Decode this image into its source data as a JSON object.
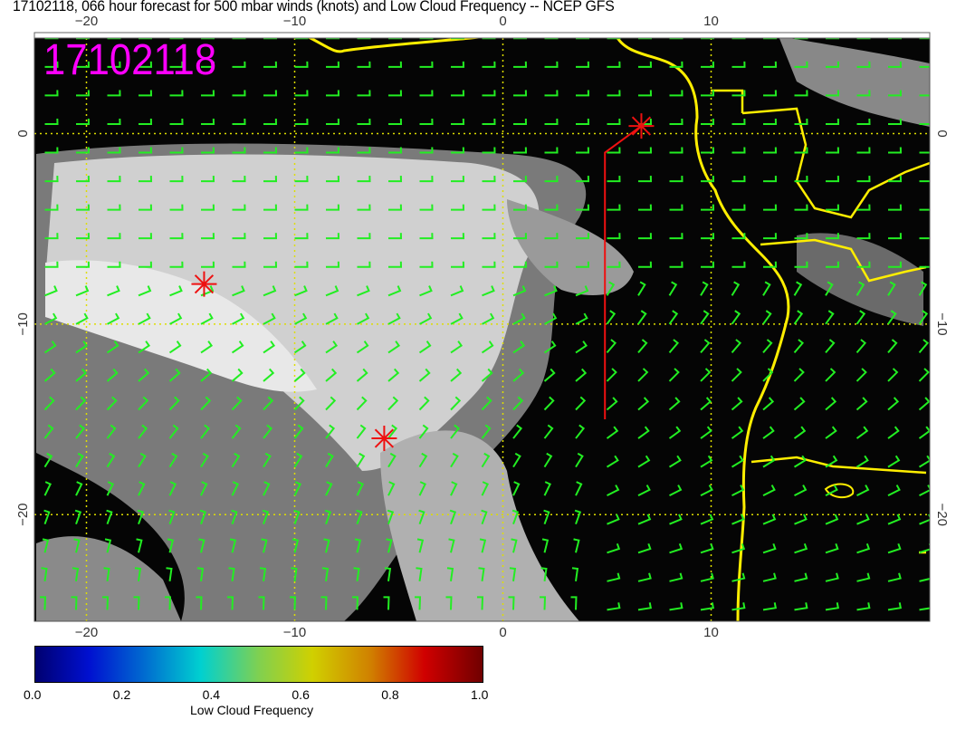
{
  "title": "17102118, 066 hour forecast for 500 mbar winds (knots) and Low Cloud Frequency -- NCEP GFS",
  "stamp": "17102118",
  "map": {
    "lon_range": [
      -22.5,
      20.5
    ],
    "lat_range": [
      -25.6,
      5.3
    ],
    "lon_ticks": [
      "−20",
      "−10",
      "0",
      "10"
    ],
    "lon_tick_values": [
      -20,
      -10,
      0,
      10
    ],
    "lat_ticks": [
      "0",
      "−10",
      "−20"
    ],
    "lat_tick_values": [
      0,
      -10,
      -20
    ],
    "gridlines": "dotted",
    "colors": {
      "background": "#000000",
      "cloud": "#d8d8d8",
      "wind_barbs": "#22ee22",
      "coastline": "#ffee00",
      "markers": "#ee1111",
      "stamp": "#ff00ff",
      "grid": "#dddd00"
    },
    "markers": [
      {
        "lon": -14.35,
        "lat": -7.9
      },
      {
        "lon": 6.65,
        "lat": 0.4
      },
      {
        "lon": -5.7,
        "lat": -16.0
      }
    ],
    "track": [
      [
        4.9,
        -15.0
      ],
      [
        4.9,
        -1.0
      ],
      [
        6.65,
        0.4
      ]
    ]
  },
  "colorbar": {
    "title": "Low Cloud Frequency",
    "labels": [
      "0.0",
      "0.2",
      "0.4",
      "0.6",
      "0.8",
      "1.0"
    ],
    "range": [
      0,
      1
    ]
  }
}
